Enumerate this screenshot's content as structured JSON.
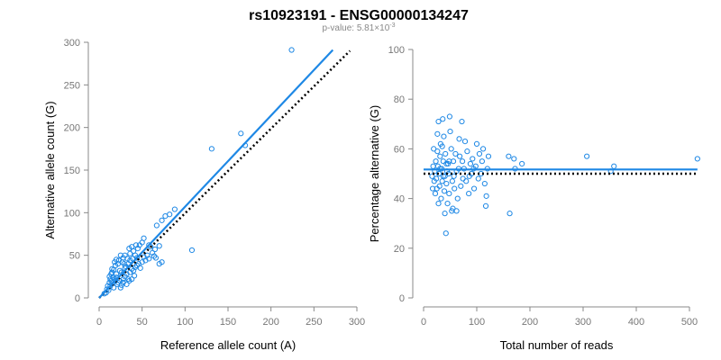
{
  "title": "rs10923191 - ENSG00000134247",
  "subtitle": "p-value: 5.81×10",
  "subtitle_exponent": "-3",
  "colors": {
    "points": "#1E88E5",
    "fit_line": "#1E88E5",
    "expected_line": "#000000",
    "axis": "#888888"
  },
  "chart_data": [
    {
      "type": "scatter",
      "xlabel": "Reference allele count (A)",
      "ylabel": "Alternative allele count (G)",
      "xlim": [
        0,
        300
      ],
      "ylim": [
        0,
        300
      ],
      "xticks": [
        0,
        50,
        100,
        150,
        200,
        250,
        300
      ],
      "yticks": [
        0,
        50,
        100,
        150,
        200,
        250,
        300
      ],
      "grid": false,
      "points": [
        [
          224,
          291
        ],
        [
          165,
          193
        ],
        [
          170,
          179
        ],
        [
          131,
          175
        ],
        [
          108,
          56
        ],
        [
          88,
          104
        ],
        [
          82,
          98
        ],
        [
          77,
          96
        ],
        [
          73,
          91
        ],
        [
          70,
          61
        ],
        [
          67,
          85
        ],
        [
          65,
          57
        ],
        [
          60,
          60
        ],
        [
          58,
          62
        ],
        [
          62,
          53
        ],
        [
          64,
          49
        ],
        [
          66,
          47
        ],
        [
          70,
          40
        ],
        [
          73,
          42
        ],
        [
          52,
          70
        ],
        [
          50,
          65
        ],
        [
          47,
          62
        ],
        [
          45,
          58
        ],
        [
          43,
          62
        ],
        [
          40,
          55
        ],
        [
          38,
          60
        ],
        [
          36,
          52
        ],
        [
          35,
          58
        ],
        [
          33,
          46
        ],
        [
          30,
          50
        ],
        [
          28,
          47
        ],
        [
          27,
          42
        ],
        [
          25,
          50
        ],
        [
          23,
          44
        ],
        [
          22,
          40
        ],
        [
          20,
          45
        ],
        [
          19,
          38
        ],
        [
          18,
          42
        ],
        [
          17,
          33
        ],
        [
          15,
          34
        ],
        [
          14,
          28
        ],
        [
          13,
          22
        ],
        [
          12,
          18
        ],
        [
          10,
          14
        ],
        [
          9,
          10
        ],
        [
          8,
          6
        ],
        [
          6,
          5
        ],
        [
          12,
          25
        ],
        [
          14,
          20
        ],
        [
          16,
          18
        ],
        [
          18,
          22
        ],
        [
          20,
          24
        ],
        [
          22,
          18
        ],
        [
          24,
          20
        ],
        [
          26,
          15
        ],
        [
          28,
          22
        ],
        [
          30,
          25
        ],
        [
          32,
          28
        ],
        [
          34,
          22
        ],
        [
          36,
          30
        ],
        [
          38,
          34
        ],
        [
          40,
          32
        ],
        [
          42,
          36
        ],
        [
          44,
          38
        ],
        [
          46,
          40
        ],
        [
          48,
          35
        ],
        [
          50,
          42
        ],
        [
          52,
          48
        ],
        [
          54,
          44
        ],
        [
          56,
          50
        ],
        [
          58,
          46
        ],
        [
          30,
          35
        ],
        [
          26,
          30
        ],
        [
          24,
          32
        ],
        [
          20,
          28
        ],
        [
          16,
          24
        ],
        [
          15,
          30
        ],
        [
          21,
          16
        ],
        [
          19,
          20
        ],
        [
          17,
          12
        ],
        [
          11,
          9
        ],
        [
          13,
          14
        ],
        [
          25,
          12
        ],
        [
          28,
          18
        ],
        [
          32,
          16
        ],
        [
          35,
          20
        ],
        [
          38,
          22
        ],
        [
          41,
          26
        ],
        [
          29,
          40
        ],
        [
          31,
          37
        ],
        [
          34,
          40
        ],
        [
          36,
          44
        ],
        [
          39,
          46
        ],
        [
          42,
          50
        ],
        [
          44,
          47
        ]
      ],
      "fit_line": [
        [
          0,
          0
        ],
        [
          272,
          291
        ]
      ],
      "expected_line": [
        [
          0,
          0
        ],
        [
          292,
          290
        ]
      ]
    },
    {
      "type": "scatter",
      "xlabel": "Total number of reads",
      "ylabel": "Percentage alternative (G)",
      "xlim": [
        0,
        500
      ],
      "ylim": [
        0,
        100
      ],
      "xticks": [
        0,
        100,
        200,
        300,
        400,
        500
      ],
      "yticks": [
        0,
        20,
        40,
        60,
        80,
        100
      ],
      "grid": false,
      "points": [
        [
          515,
          56
        ],
        [
          358,
          53
        ],
        [
          352,
          51
        ],
        [
          307,
          57
        ],
        [
          185,
          54
        ],
        [
          170,
          56
        ],
        [
          172,
          52
        ],
        [
          160,
          57
        ],
        [
          162,
          34
        ],
        [
          122,
          57
        ],
        [
          120,
          52
        ],
        [
          118,
          41
        ],
        [
          115,
          46
        ],
        [
          117,
          37
        ],
        [
          112,
          60
        ],
        [
          110,
          55
        ],
        [
          108,
          50
        ],
        [
          105,
          58
        ],
        [
          103,
          48
        ],
        [
          100,
          62
        ],
        [
          98,
          53
        ],
        [
          95,
          44
        ],
        [
          92,
          56
        ],
        [
          90,
          50
        ],
        [
          88,
          54
        ],
        [
          85,
          42
        ],
        [
          82,
          59
        ],
        [
          80,
          47
        ],
        [
          78,
          63
        ],
        [
          76,
          52
        ],
        [
          74,
          48
        ],
        [
          72,
          71
        ],
        [
          70,
          45
        ],
        [
          68,
          57
        ],
        [
          66,
          52
        ],
        [
          64,
          40
        ],
        [
          62,
          51
        ],
        [
          60,
          58
        ],
        [
          58,
          44
        ],
        [
          56,
          55
        ],
        [
          55,
          36
        ],
        [
          54,
          47
        ],
        [
          52,
          60
        ],
        [
          50,
          67
        ],
        [
          49,
          73
        ],
        [
          48,
          42
        ],
        [
          46,
          54
        ],
        [
          45,
          38
        ],
        [
          44,
          51
        ],
        [
          43,
          46
        ],
        [
          42,
          26
        ],
        [
          41,
          58
        ],
        [
          40,
          49
        ],
        [
          39,
          43
        ],
        [
          38,
          65
        ],
        [
          37,
          55
        ],
        [
          36,
          72
        ],
        [
          35,
          47
        ],
        [
          34,
          52
        ],
        [
          33,
          40
        ],
        [
          32,
          62
        ],
        [
          31,
          57
        ],
        [
          30,
          45
        ],
        [
          29,
          50
        ],
        [
          28,
          38
        ],
        [
          27,
          53
        ],
        [
          26,
          59
        ],
        [
          25,
          44
        ],
        [
          24,
          48
        ],
        [
          23,
          55
        ],
        [
          22,
          42
        ],
        [
          21,
          51
        ],
        [
          20,
          47
        ],
        [
          19,
          60
        ],
        [
          18,
          53
        ],
        [
          17,
          44
        ],
        [
          16,
          49
        ],
        [
          28,
          71
        ],
        [
          35,
          61
        ],
        [
          40,
          34
        ],
        [
          47,
          50
        ],
        [
          53,
          35
        ],
        [
          57,
          49
        ],
        [
          62,
          35
        ],
        [
          67,
          64
        ],
        [
          73,
          55
        ],
        [
          86,
          49
        ],
        [
          94,
          52
        ],
        [
          26,
          66
        ],
        [
          31,
          52
        ],
        [
          37,
          49
        ],
        [
          43,
          54
        ],
        [
          48,
          55
        ]
      ],
      "fit_line": [
        [
          0,
          51.7
        ],
        [
          515,
          51.7
        ]
      ],
      "expected_line": [
        [
          0,
          50
        ],
        [
          515,
          50
        ]
      ]
    }
  ]
}
